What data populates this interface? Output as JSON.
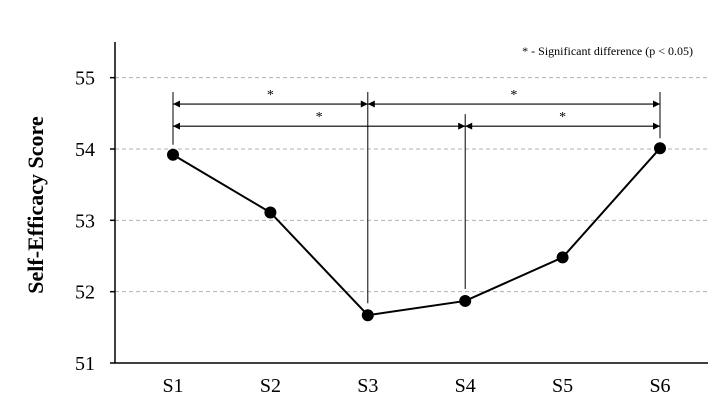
{
  "chart_data": {
    "type": "line",
    "title": "",
    "xlabel": "",
    "ylabel": "Self-Efficacy Score",
    "categories": [
      "S1",
      "S2",
      "S3",
      "S4",
      "S5",
      "S6"
    ],
    "series": [
      {
        "values": [
          53.92,
          53.11,
          51.67,
          51.87,
          52.48,
          54.01
        ]
      }
    ],
    "ylim": [
      51,
      55.5
    ],
    "yticks": [
      51,
      52,
      53,
      54,
      55
    ],
    "ytick_labels": [
      "51",
      "52",
      "53",
      "54",
      "55"
    ],
    "grid": "horizontal dashed at ticks 52-55",
    "legend": "none",
    "annotation": "* - Significant difference (p < 0.05)",
    "significance": [
      {
        "from": "S1",
        "to": "S3",
        "label": "*",
        "level": 54.63
      },
      {
        "from": "S3",
        "to": "S6",
        "label": "*",
        "level": 54.63
      },
      {
        "from": "S1",
        "to": "S4",
        "label": "*",
        "level": 54.32
      },
      {
        "from": "S4",
        "to": "S6",
        "label": "*",
        "level": 54.32
      }
    ],
    "colors": {
      "line": "#000000",
      "grid": "#b0b0b0",
      "axis": "#000000"
    }
  }
}
